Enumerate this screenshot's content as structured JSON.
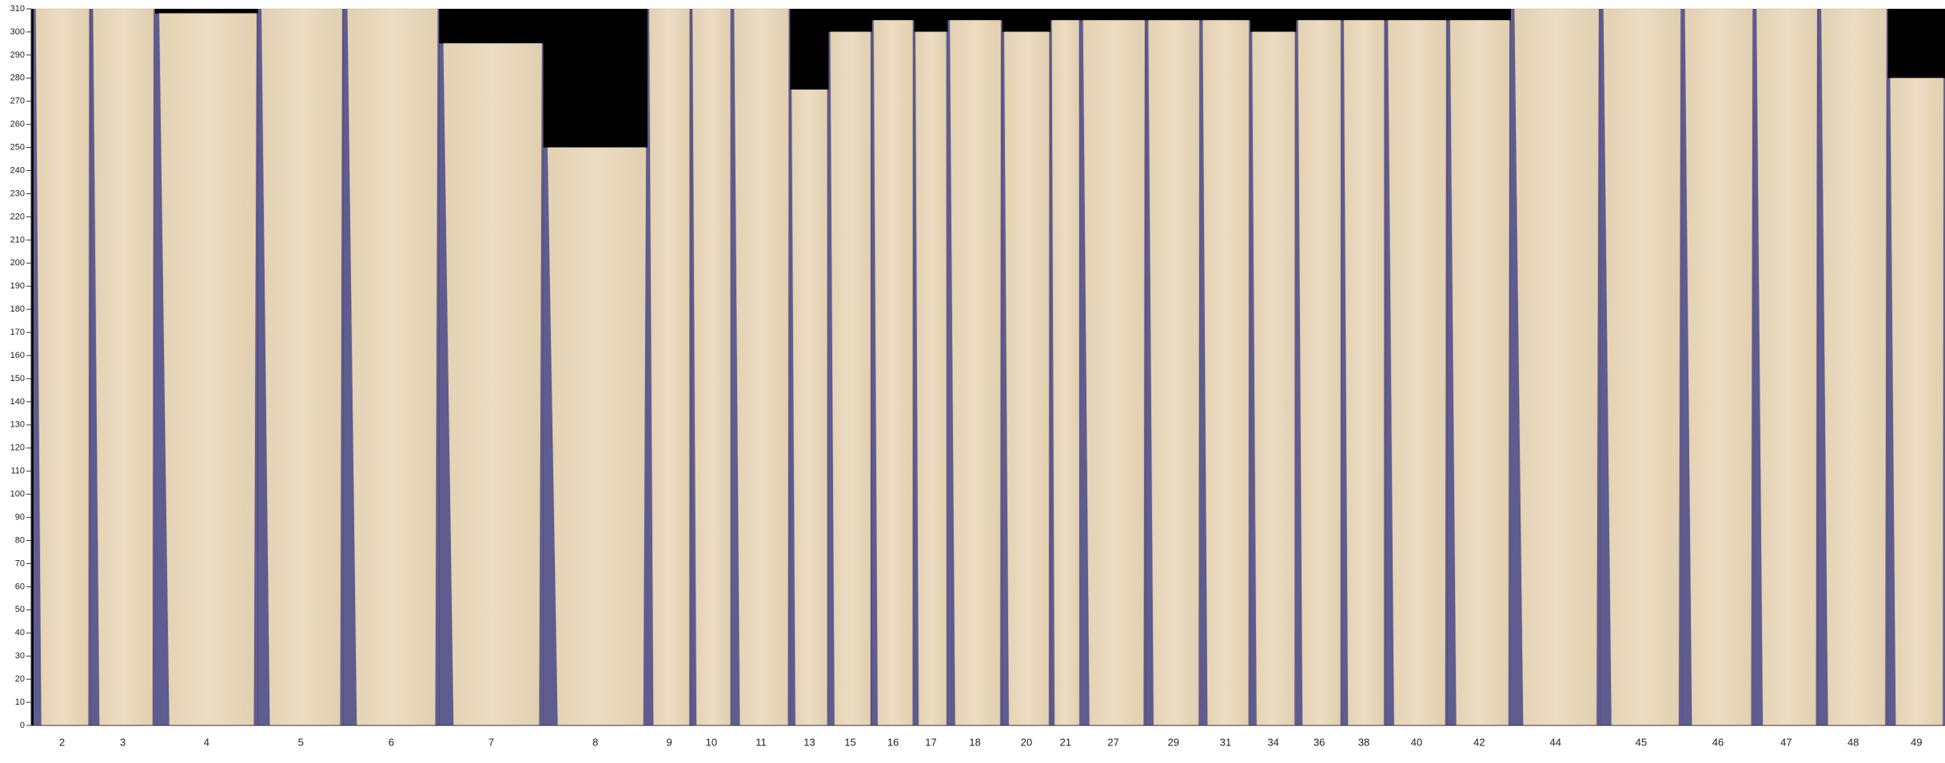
{
  "axis": {
    "ylim": [
      0,
      310
    ],
    "yticks": [
      0,
      10,
      20,
      30,
      40,
      50,
      60,
      70,
      80,
      90,
      100,
      110,
      120,
      130,
      140,
      150,
      160,
      170,
      180,
      190,
      200,
      210,
      220,
      230,
      240,
      250,
      260,
      270,
      280,
      290,
      300,
      310
    ]
  },
  "strips": [
    {
      "label": "2",
      "height": 310
    },
    {
      "label": "3",
      "height": 310
    },
    {
      "label": "4",
      "height": 308
    },
    {
      "label": "5",
      "height": 310
    },
    {
      "label": "6",
      "height": 310
    },
    {
      "label": "7",
      "height": 295
    },
    {
      "label": "8",
      "height": 250
    },
    {
      "label": "9",
      "height": 310
    },
    {
      "label": "10",
      "height": 310
    },
    {
      "label": "11",
      "height": 310
    },
    {
      "label": "13",
      "height": 275
    },
    {
      "label": "15",
      "height": 300
    },
    {
      "label": "16",
      "height": 305
    },
    {
      "label": "17",
      "height": 300
    },
    {
      "label": "18",
      "height": 305
    },
    {
      "label": "20",
      "height": 300
    },
    {
      "label": "21",
      "height": 305
    },
    {
      "label": "27",
      "height": 305
    },
    {
      "label": "29",
      "height": 305
    },
    {
      "label": "31",
      "height": 305
    },
    {
      "label": "34",
      "height": 300
    },
    {
      "label": "36",
      "height": 305
    },
    {
      "label": "38",
      "height": 305
    },
    {
      "label": "40",
      "height": 305
    },
    {
      "label": "42",
      "height": 305
    },
    {
      "label": "44",
      "height": 310
    },
    {
      "label": "45",
      "height": 310
    },
    {
      "label": "46",
      "height": 310
    },
    {
      "label": "47",
      "height": 310
    },
    {
      "label": "48",
      "height": 310
    },
    {
      "label": "49",
      "height": 280
    }
  ]
}
